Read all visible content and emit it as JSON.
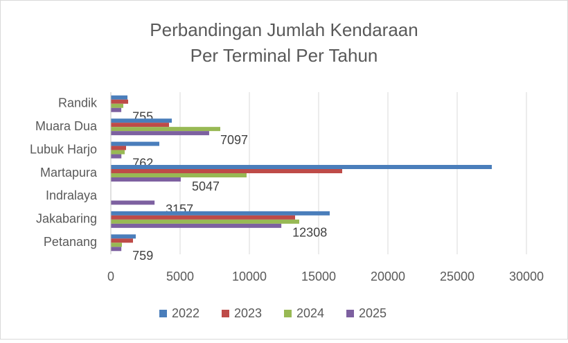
{
  "chart_data": {
    "type": "hbar",
    "title": [
      "Perbandingan Jumlah Kendaraan",
      "Per Terminal Per Tahun"
    ],
    "categories": [
      "Randik",
      "Muara Dua",
      "Lubuk Harjo",
      "Martapura",
      "Indralaya",
      "Jakabaring",
      "Petanang"
    ],
    "series": [
      {
        "name": "2022",
        "color": "#4a7ebb",
        "values": [
          1200,
          4400,
          3500,
          27500,
          0,
          15800,
          1800
        ]
      },
      {
        "name": "2023",
        "color": "#be4b48",
        "values": [
          1250,
          4200,
          1100,
          16700,
          0,
          13300,
          1600
        ]
      },
      {
        "name": "2024",
        "color": "#98b954",
        "values": [
          900,
          7900,
          1000,
          9800,
          0,
          13600,
          800
        ]
      },
      {
        "name": "2025",
        "color": "#7d60a0",
        "values": [
          755,
          7097,
          762,
          5047,
          3157,
          12308,
          759
        ],
        "show_value_labels": true
      }
    ],
    "xlim": [
      0,
      30000
    ],
    "xticks": [
      0,
      5000,
      10000,
      15000,
      20000,
      25000,
      30000
    ],
    "grid": true,
    "legend": "bottom"
  }
}
